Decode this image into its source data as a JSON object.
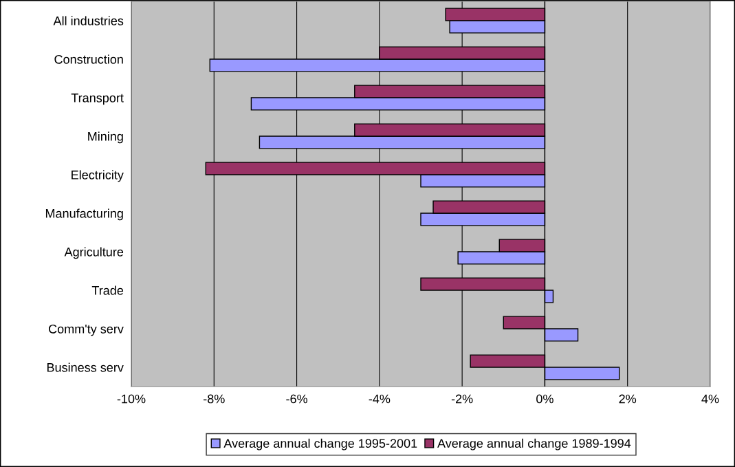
{
  "chart_data": {
    "type": "bar",
    "orientation": "horizontal",
    "categories": [
      "All industries",
      "Construction",
      "Transport",
      "Mining",
      "Electricity",
      "Manufacturing",
      "Agriculture",
      "Trade",
      "Comm'ty serv",
      "Business serv"
    ],
    "series": [
      {
        "name": "Average annual change 1995-2001",
        "color": "#9999ff",
        "values": [
          -2.3,
          -8.1,
          -7.1,
          -6.9,
          -3.0,
          -3.0,
          -2.1,
          0.2,
          0.8,
          1.8
        ]
      },
      {
        "name": "Average annual change 1989-1994",
        "color": "#993366",
        "values": [
          -2.4,
          -4.0,
          -4.6,
          -4.6,
          -8.2,
          -2.7,
          -1.1,
          -3.0,
          -1.0,
          -1.8
        ]
      }
    ],
    "xlim": [
      -10,
      4
    ],
    "xticks": [
      {
        "value": -10,
        "label": "-10%"
      },
      {
        "value": -8,
        "label": "-8%"
      },
      {
        "value": -6,
        "label": "-6%"
      },
      {
        "value": -4,
        "label": "-4%"
      },
      {
        "value": -2,
        "label": "-2%"
      },
      {
        "value": 0,
        "label": "0%"
      },
      {
        "value": 2,
        "label": "2%"
      },
      {
        "value": 4,
        "label": "4%"
      }
    ],
    "grid": "x",
    "legend": "bottom"
  }
}
